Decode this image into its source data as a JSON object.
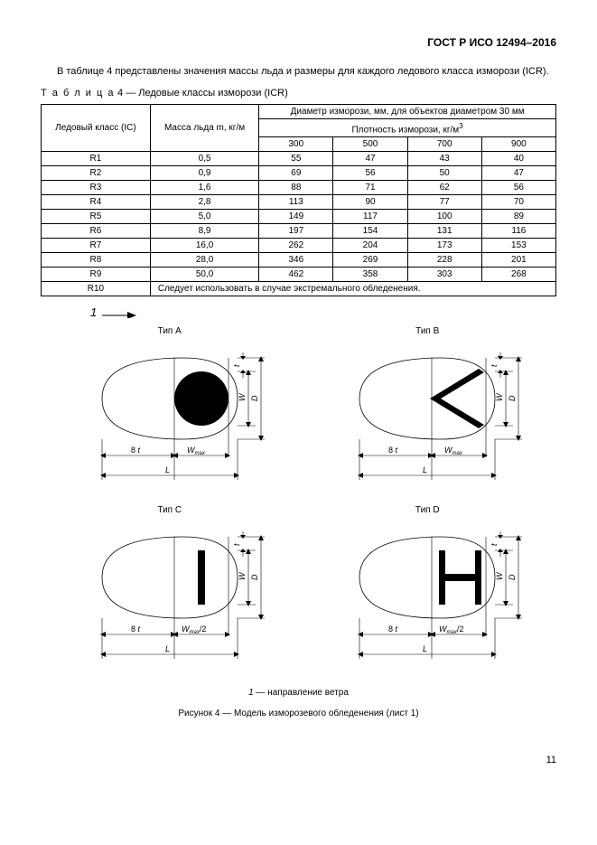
{
  "doc_id": "ГОСТ Р ИСО 12494–2016",
  "intro": "В таблице 4 представлены значения массы льда и размеры для каждого ледового класса изморози (ICR).",
  "table_caption_prefix": "Т а б л и ц а",
  "table_caption_rest": " 4 — Ледовые классы изморози (ICR)",
  "table": {
    "col_ice_class": "Ледовый класс (IC)",
    "col_mass": "Масса льда m, кг/м",
    "header_diameter": "Диаметр изморози, мм, для объектов диаметром 30 мм",
    "header_density": "Плотность изморози, кг/м",
    "density_exp": "3",
    "densities": [
      "300",
      "500",
      "700",
      "900"
    ],
    "rows": [
      {
        "c": "R1",
        "m": "0,5",
        "v": [
          "55",
          "47",
          "43",
          "40"
        ]
      },
      {
        "c": "R2",
        "m": "0,9",
        "v": [
          "69",
          "56",
          "50",
          "47"
        ]
      },
      {
        "c": "R3",
        "m": "1,6",
        "v": [
          "88",
          "71",
          "62",
          "56"
        ]
      },
      {
        "c": "R4",
        "m": "2,8",
        "v": [
          "113",
          "90",
          "77",
          "70"
        ]
      },
      {
        "c": "R5",
        "m": "5,0",
        "v": [
          "149",
          "117",
          "100",
          "89"
        ]
      },
      {
        "c": "R6",
        "m": "8,9",
        "v": [
          "197",
          "154",
          "131",
          "116"
        ]
      },
      {
        "c": "R7",
        "m": "16,0",
        "v": [
          "262",
          "204",
          "173",
          "153"
        ]
      },
      {
        "c": "R8",
        "m": "28,0",
        "v": [
          "346",
          "269",
          "228",
          "201"
        ]
      },
      {
        "c": "R9",
        "m": "50,0",
        "v": [
          "462",
          "358",
          "303",
          "268"
        ]
      }
    ],
    "r10": "R10",
    "footnote": "Следует использовать в случае экстремального обледенения."
  },
  "wind_label": "1",
  "diagrams": {
    "a": "Тип A",
    "b": "Тип B",
    "c": "Тип C",
    "d": "Тип D",
    "t": "t",
    "w": "W",
    "d_dim": "D",
    "eight_t": "8 t",
    "wmax": "W",
    "wmax_sub": "max",
    "wmax_half": "/2",
    "L": "L"
  },
  "caption_small_prefix": "1",
  "caption_small": " — направление ветра",
  "fig_caption": "Рисунок 4 — Модель изморозевого обледенения (лист 1)",
  "page_num": "11",
  "colors": {
    "line": "#000000",
    "fill": "#000000"
  }
}
